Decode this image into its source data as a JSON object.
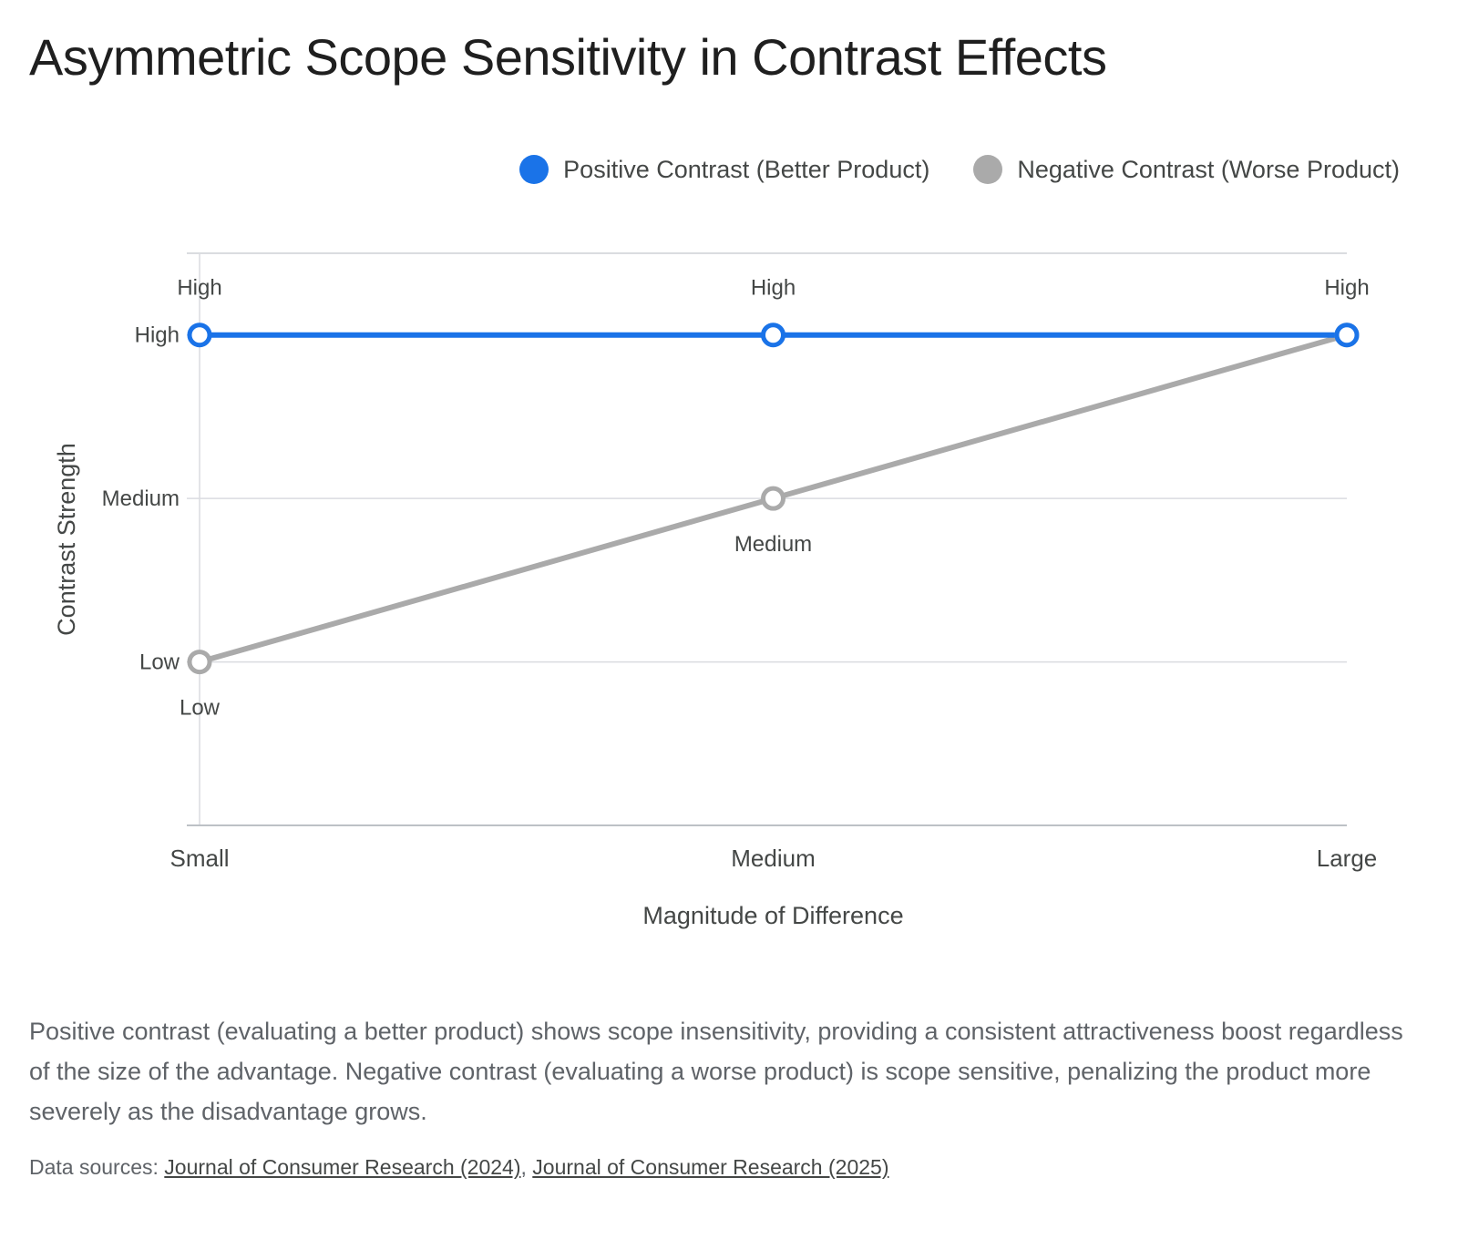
{
  "title": "Asymmetric Scope Sensitivity in Contrast Effects",
  "colors": {
    "positive": "#1a73e8",
    "negative": "#aaaaaa",
    "grid": "#dadce0",
    "text": "#444746"
  },
  "legend": [
    {
      "label": "Positive Contrast (Better Product)",
      "color": "#1a73e8"
    },
    {
      "label": "Negative Contrast (Worse Product)",
      "color": "#aaaaaa"
    }
  ],
  "chart_data": {
    "type": "line",
    "categories": [
      "Small",
      "Medium",
      "Large"
    ],
    "y_levels": [
      "Low",
      "Medium",
      "High"
    ],
    "xlabel": "Magnitude of Difference",
    "ylabel": "Contrast Strength",
    "ylim": [
      0,
      3.5
    ],
    "grid": true,
    "legend_position": "top-right",
    "series": [
      {
        "name": "Positive Contrast (Better Product)",
        "color": "#1a73e8",
        "values": [
          3,
          3,
          3
        ],
        "labels": [
          "High",
          "High",
          "High"
        ],
        "label_position": "above"
      },
      {
        "name": "Negative Contrast (Worse Product)",
        "color": "#aaaaaa",
        "values": [
          1,
          2,
          3
        ],
        "labels": [
          "Low",
          "Medium",
          ""
        ],
        "label_position": "below"
      }
    ]
  },
  "description": "Positive contrast (evaluating a better product) shows scope insensitivity, providing a consistent attractiveness boost regardless of the size of the advantage. Negative contrast (evaluating a worse product) is scope sensitive, penalizing the product more severely as the disadvantage grows.",
  "sources": {
    "prefix": "Data sources: ",
    "links": [
      "Journal of Consumer Research (2024)",
      "Journal of Consumer Research (2025)"
    ],
    "separator": ", "
  }
}
